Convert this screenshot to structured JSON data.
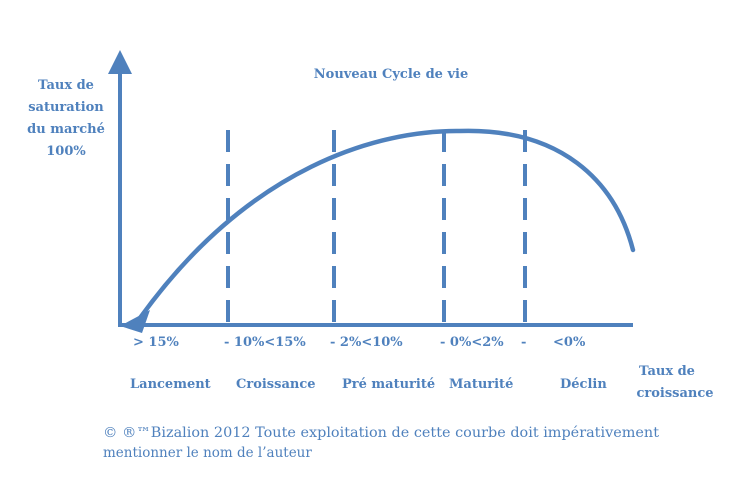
{
  "title": "Nouveau Cycle de vie",
  "y_axis": {
    "label_lines": [
      "Taux de",
      "saturation",
      "du marché",
      "100%"
    ]
  },
  "x_axis": {
    "label_lines": [
      "Taux de",
      "croissance"
    ]
  },
  "growth_rates": [
    "> 15%",
    "-  10%<15%",
    "-  2%<10%",
    "-  0%<2%",
    "-",
    "<0%"
  ],
  "phases": [
    "Lancement",
    "Croissance",
    "Pré maturité",
    "Maturité",
    "Déclin"
  ],
  "copyright": {
    "lines": [
      "© ®™Bizalion 2012 Toute exploitation de cette courbe  doit impérativement",
      "mentionner le nom de l’auteur"
    ]
  },
  "colors": {
    "primary": "#4f81bd",
    "background": "#ffffff"
  }
}
